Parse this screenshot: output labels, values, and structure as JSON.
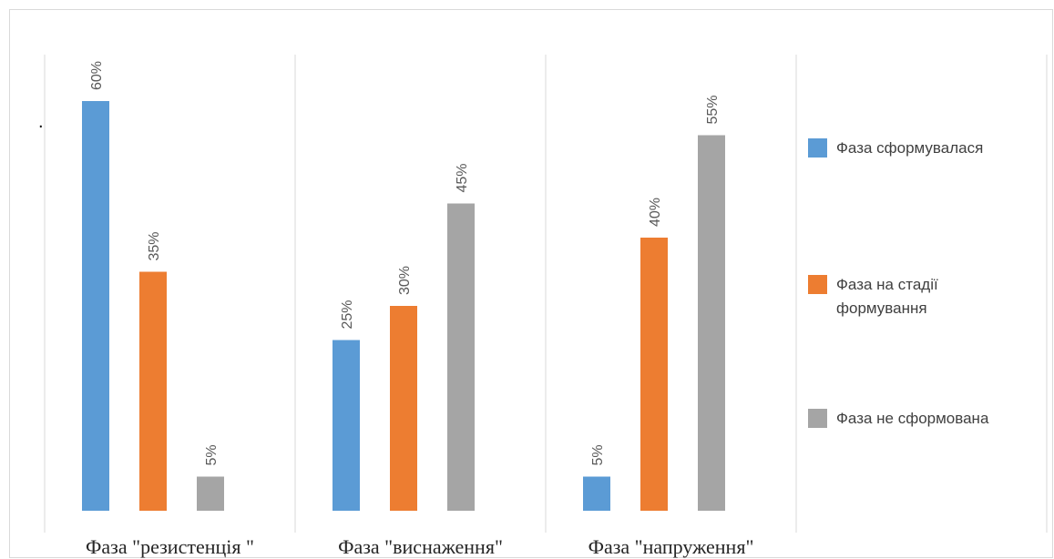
{
  "chart_data": {
    "type": "bar",
    "categories": [
      "Фаза \"резистенція \"",
      "Фаза \"виснаження\"",
      "Фаза \"напруження\""
    ],
    "series": [
      {
        "name": "Фаза сформувалася",
        "color": "#5b9bd5",
        "values": [
          60,
          25,
          5
        ]
      },
      {
        "name": "Фаза на стадії формування",
        "color": "#ed7d31",
        "values": [
          35,
          30,
          40
        ]
      },
      {
        "name": "Фаза не сформована",
        "color": "#a5a5a5",
        "values": [
          5,
          45,
          55
        ]
      }
    ],
    "value_labels": [
      [
        "60%",
        "25%",
        "5%"
      ],
      [
        "35%",
        "30%",
        "40%"
      ],
      [
        "5%",
        "45%",
        "55%"
      ]
    ],
    "unit": "%",
    "ylim": [
      0,
      60
    ],
    "grid": false,
    "legend_position": "right",
    "stray_mark": "."
  }
}
